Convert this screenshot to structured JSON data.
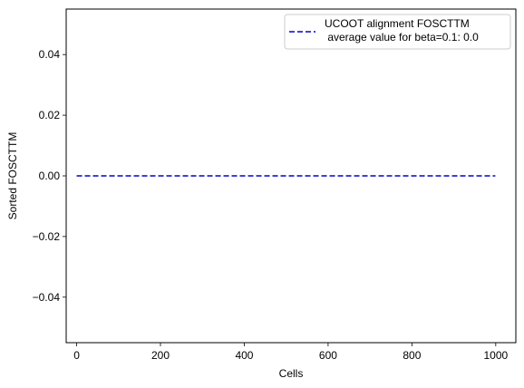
{
  "chart_data": {
    "type": "line",
    "title": "",
    "xlabel": "Cells",
    "ylabel": "Sorted FOSCTTM",
    "xlim": [
      -24.95,
      1047.95
    ],
    "ylim": [
      -0.055,
      0.055
    ],
    "x_ticks": [
      0,
      200,
      400,
      600,
      800,
      1000
    ],
    "y_ticks": [
      -0.04,
      -0.02,
      0.0,
      0.02,
      0.04
    ],
    "x_tick_labels": [
      "0",
      "200",
      "400",
      "600",
      "800",
      "1000"
    ],
    "y_tick_labels": [
      "−0.04",
      "−0.02",
      "0.00",
      "0.02",
      "0.04"
    ],
    "grid": false,
    "legend_position": "top-right",
    "series": [
      {
        "name": "UCOOT alignment FOSCTTM\n average value for beta=0.1: 0.0",
        "legend_lines": [
          "UCOOT alignment FOSCTTM",
          " average value for beta=0.1: 0.0"
        ],
        "color": "#0000cc",
        "line_style": "dashed",
        "x": [
          0,
          999
        ],
        "y": [
          0.0,
          0.0
        ]
      }
    ]
  }
}
